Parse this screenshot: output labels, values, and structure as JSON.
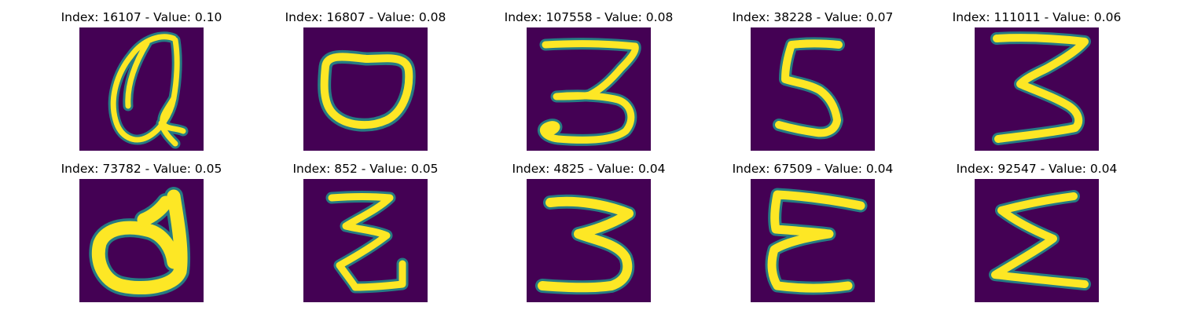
{
  "colors": {
    "background": "#440154",
    "stroke_edge": "#21918c",
    "stroke_core": "#fde725",
    "title_text": "#000000"
  },
  "panels": [
    {
      "title": "Index: 16107 - Value: 0.10",
      "index": 16107,
      "value": 0.1,
      "glyph": "handwritten-a-like-shape"
    },
    {
      "title": "Index: 16807 - Value: 0.08",
      "index": 16807,
      "value": 0.08,
      "glyph": "handwritten-o-shape"
    },
    {
      "title": "Index: 107558 - Value: 0.08",
      "index": 107558,
      "value": 0.08,
      "glyph": "handwritten-3-shape"
    },
    {
      "title": "Index: 38228 - Value: 0.07",
      "index": 38228,
      "value": 0.07,
      "glyph": "handwritten-5-shape"
    },
    {
      "title": "Index: 111011 - Value: 0.06",
      "index": 111011,
      "value": 0.06,
      "glyph": "handwritten-3-shape"
    },
    {
      "title": "Index: 73782 - Value: 0.05",
      "index": 73782,
      "value": 0.05,
      "glyph": "handwritten-d-shape"
    },
    {
      "title": "Index: 852 - Value: 0.05",
      "index": 852,
      "value": 0.05,
      "glyph": "handwritten-z-shape"
    },
    {
      "title": "Index: 4825 - Value: 0.04",
      "index": 4825,
      "value": 0.04,
      "glyph": "handwritten-3-shape"
    },
    {
      "title": "Index: 67509 - Value: 0.04",
      "index": 67509,
      "value": 0.04,
      "glyph": "handwritten-E-shape"
    },
    {
      "title": "Index: 92547 - Value: 0.04",
      "index": 92547,
      "value": 0.04,
      "glyph": "handwritten-sigma-shape"
    }
  ]
}
